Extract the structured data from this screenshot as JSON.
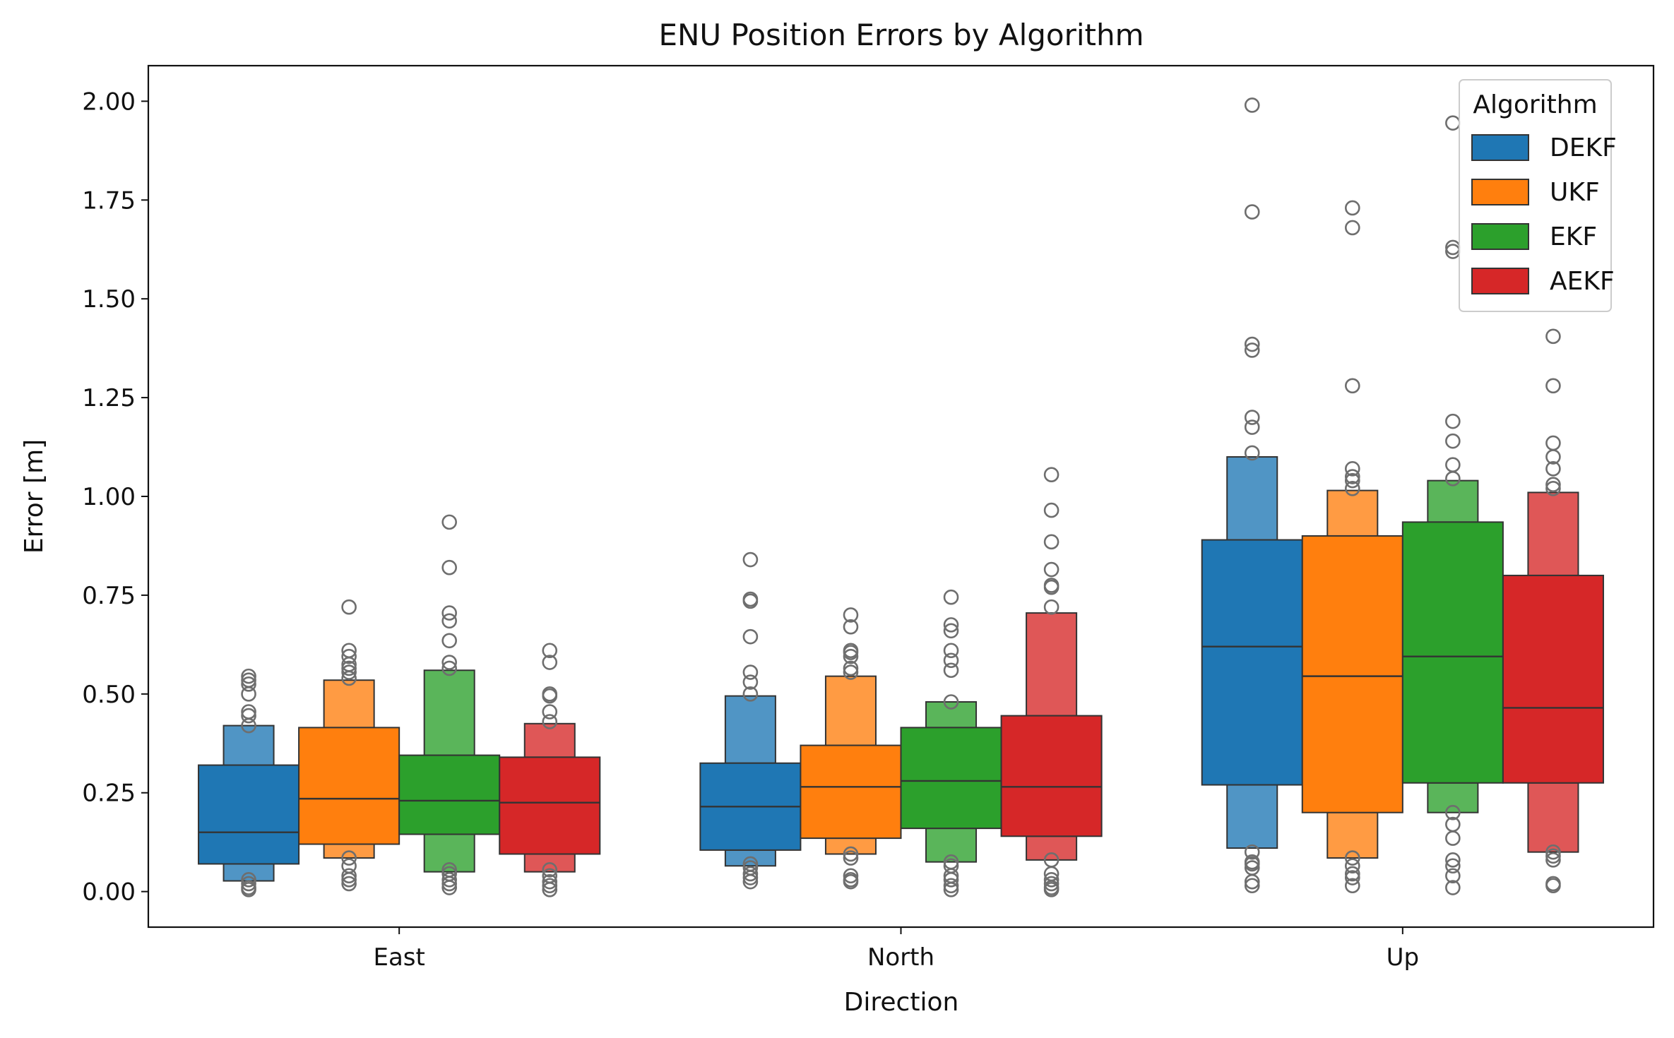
{
  "chart_data": {
    "type": "boxen",
    "title": "ENU Position Errors by Algorithm",
    "xlabel": "Direction",
    "ylabel": "Error [m]",
    "ylim": [
      -0.09,
      2.09
    ],
    "yticks": [
      0.0,
      0.25,
      0.5,
      0.75,
      1.0,
      1.25,
      1.5,
      1.75,
      2.0
    ],
    "ytick_labels": [
      "0.00",
      "0.25",
      "0.50",
      "0.75",
      "1.00",
      "1.25",
      "1.50",
      "1.75",
      "2.00"
    ],
    "categories": [
      "East",
      "North",
      "Up"
    ],
    "legend": {
      "title": "Algorithm",
      "placement": "top-right"
    },
    "series": [
      {
        "name": "DEKF",
        "color": "#1f77b4",
        "groups": [
          {
            "median": 0.15,
            "box": [
              0.07,
              0.32
            ],
            "inner": [
              0.027,
              0.42
            ],
            "outliers": [
              0.545,
              0.535,
              0.525,
              0.5,
              0.455,
              0.445,
              0.42,
              0.03,
              0.02,
              0.01,
              0.005
            ]
          },
          {
            "median": 0.215,
            "box": [
              0.105,
              0.325
            ],
            "inner": [
              0.065,
              0.495
            ],
            "outliers": [
              0.84,
              0.74,
              0.735,
              0.645,
              0.555,
              0.53,
              0.5,
              0.07,
              0.06,
              0.045,
              0.035,
              0.025
            ]
          },
          {
            "median": 0.62,
            "box": [
              0.27,
              0.89
            ],
            "inner": [
              0.11,
              1.1
            ],
            "outliers": [
              1.99,
              1.72,
              1.385,
              1.37,
              1.2,
              1.175,
              1.11,
              0.1,
              0.075,
              0.07,
              0.06,
              0.025,
              0.015
            ]
          }
        ]
      },
      {
        "name": "UKF",
        "color": "#ff7f0e",
        "groups": [
          {
            "median": 0.235,
            "box": [
              0.12,
              0.415
            ],
            "inner": [
              0.085,
              0.535
            ],
            "outliers": [
              0.72,
              0.61,
              0.595,
              0.575,
              0.565,
              0.555,
              0.54,
              0.085,
              0.065,
              0.04,
              0.03,
              0.02
            ]
          },
          {
            "median": 0.265,
            "box": [
              0.135,
              0.37
            ],
            "inner": [
              0.095,
              0.545
            ],
            "outliers": [
              0.7,
              0.67,
              0.61,
              0.605,
              0.595,
              0.565,
              0.555,
              0.095,
              0.085,
              0.04,
              0.03,
              0.025
            ]
          },
          {
            "median": 0.545,
            "box": [
              0.2,
              0.9
            ],
            "inner": [
              0.085,
              1.015
            ],
            "outliers": [
              1.73,
              1.68,
              1.28,
              1.07,
              1.05,
              1.04,
              1.02,
              0.085,
              0.065,
              0.045,
              0.035,
              0.015
            ]
          }
        ]
      },
      {
        "name": "EKF",
        "color": "#2ca02c",
        "groups": [
          {
            "median": 0.23,
            "box": [
              0.145,
              0.345
            ],
            "inner": [
              0.05,
              0.56
            ],
            "outliers": [
              0.935,
              0.82,
              0.705,
              0.685,
              0.635,
              0.58,
              0.565,
              0.055,
              0.045,
              0.03,
              0.02,
              0.01
            ]
          },
          {
            "median": 0.28,
            "box": [
              0.16,
              0.415
            ],
            "inner": [
              0.075,
              0.48
            ],
            "outliers": [
              0.745,
              0.675,
              0.66,
              0.61,
              0.585,
              0.56,
              0.48,
              0.075,
              0.065,
              0.04,
              0.03,
              0.015,
              0.005
            ]
          },
          {
            "median": 0.595,
            "box": [
              0.275,
              0.935
            ],
            "inner": [
              0.2,
              1.04
            ],
            "outliers": [
              1.945,
              1.63,
              1.62,
              1.19,
              1.14,
              1.08,
              1.045,
              0.2,
              0.17,
              0.135,
              0.08,
              0.065,
              0.04,
              0.01
            ]
          }
        ]
      },
      {
        "name": "AEKF",
        "color": "#d62728",
        "groups": [
          {
            "median": 0.225,
            "box": [
              0.095,
              0.34
            ],
            "inner": [
              0.05,
              0.425
            ],
            "outliers": [
              0.61,
              0.58,
              0.5,
              0.495,
              0.455,
              0.43,
              0.055,
              0.04,
              0.025,
              0.015,
              0.005
            ]
          },
          {
            "median": 0.265,
            "box": [
              0.14,
              0.445
            ],
            "inner": [
              0.08,
              0.705
            ],
            "outliers": [
              1.055,
              0.965,
              0.885,
              0.815,
              0.775,
              0.77,
              0.72,
              0.08,
              0.045,
              0.03,
              0.02,
              0.01,
              0.005
            ]
          },
          {
            "median": 0.465,
            "box": [
              0.275,
              0.8
            ],
            "inner": [
              0.1,
              1.01
            ],
            "outliers": [
              1.405,
              1.28,
              1.135,
              1.1,
              1.07,
              1.03,
              1.02,
              0.1,
              0.09,
              0.08,
              0.02,
              0.015
            ]
          }
        ]
      }
    ]
  }
}
